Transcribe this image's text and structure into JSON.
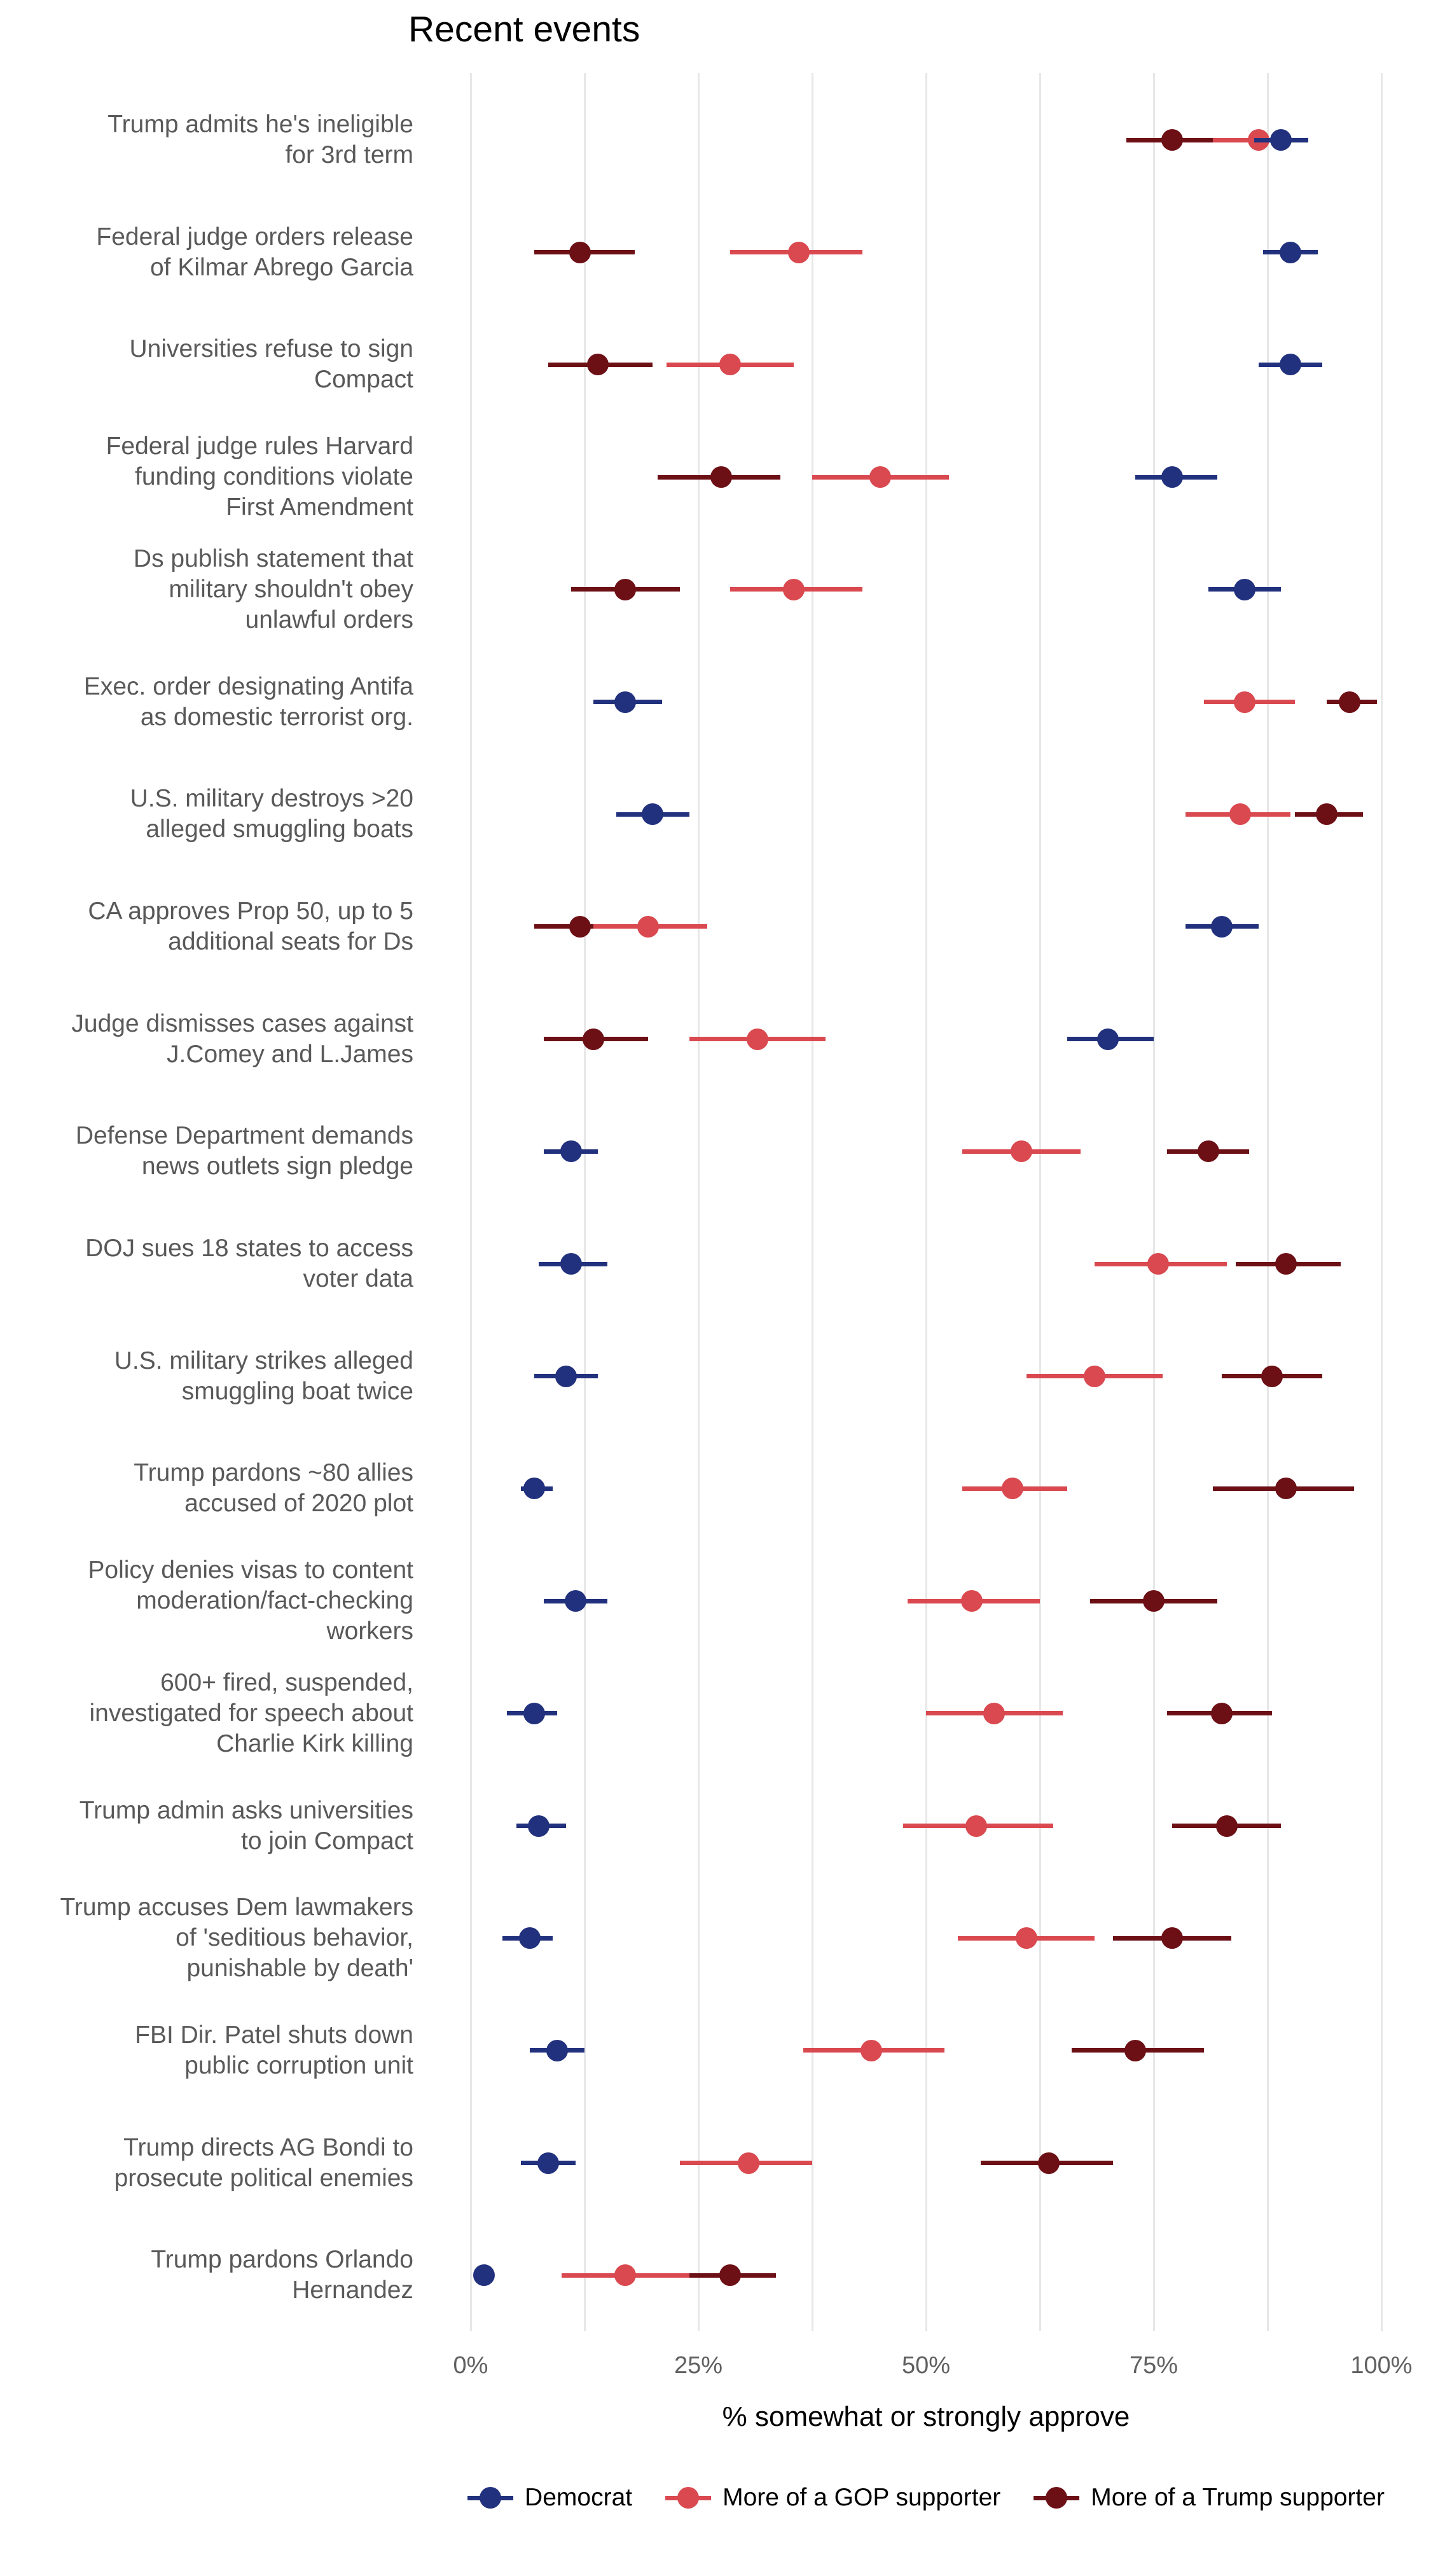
{
  "chart_data": {
    "type": "scatter",
    "mark": "pointrange",
    "title": "Recent events",
    "xlabel": "% somewhat or strongly approve",
    "xlim": [
      0,
      100
    ],
    "x_ticks": [
      {
        "value": 0,
        "label": "0%"
      },
      {
        "value": 25,
        "label": "25%"
      },
      {
        "value": 50,
        "label": "50%"
      },
      {
        "value": 75,
        "label": "75%"
      },
      {
        "value": 100,
        "label": "100%"
      }
    ],
    "gridline_values": [
      0,
      12.5,
      25,
      37.5,
      50,
      62.5,
      75,
      87.5,
      100
    ],
    "grid": "vertical-only",
    "legend_position": "bottom-center",
    "colors": {
      "democrat": "#22317d",
      "gop": "#d9494f",
      "trump": "#6c1016",
      "gridline": "#e7e7e7",
      "row_label": "#595959",
      "tick_label": "#606060"
    },
    "series": [
      {
        "key": "democrat",
        "name": "Democrat"
      },
      {
        "key": "gop",
        "name": "More of a GOP supporter"
      },
      {
        "key": "trump",
        "name": "More of a Trump supporter"
      }
    ],
    "draw_order": [
      "trump",
      "gop",
      "democrat"
    ],
    "rows": [
      {
        "label_lines": [
          "Trump admits he's ineligible",
          "for 3rd term"
        ],
        "democrat": {
          "v": 89,
          "lo": 86,
          "hi": 92
        },
        "gop": {
          "v": 86.5,
          "lo": 81.5,
          "hi": 90
        },
        "trump": {
          "v": 77,
          "lo": 72,
          "hi": 82
        }
      },
      {
        "label_lines": [
          "Federal judge orders release",
          "of Kilmar Abrego Garcia"
        ],
        "democrat": {
          "v": 90,
          "lo": 87,
          "hi": 93
        },
        "gop": {
          "v": 36,
          "lo": 28.5,
          "hi": 43
        },
        "trump": {
          "v": 12,
          "lo": 7,
          "hi": 18
        }
      },
      {
        "label_lines": [
          "Universities refuse to sign",
          "Compact"
        ],
        "democrat": {
          "v": 90,
          "lo": 86.5,
          "hi": 93.5
        },
        "gop": {
          "v": 28.5,
          "lo": 21.5,
          "hi": 35.5
        },
        "trump": {
          "v": 14,
          "lo": 8.5,
          "hi": 20
        }
      },
      {
        "label_lines": [
          "Federal judge rules Harvard",
          "funding conditions violate",
          "First Amendment"
        ],
        "democrat": {
          "v": 77,
          "lo": 73,
          "hi": 82
        },
        "gop": {
          "v": 45,
          "lo": 37.5,
          "hi": 52.5
        },
        "trump": {
          "v": 27.5,
          "lo": 20.5,
          "hi": 34
        }
      },
      {
        "label_lines": [
          "Ds publish statement that",
          "military shouldn't obey",
          "unlawful orders"
        ],
        "democrat": {
          "v": 85,
          "lo": 81,
          "hi": 89
        },
        "gop": {
          "v": 35.5,
          "lo": 28.5,
          "hi": 43
        },
        "trump": {
          "v": 17,
          "lo": 11,
          "hi": 23
        }
      },
      {
        "label_lines": [
          "Exec. order designating Antifa",
          "as domestic terrorist org."
        ],
        "democrat": {
          "v": 17,
          "lo": 13.5,
          "hi": 21
        },
        "gop": {
          "v": 85,
          "lo": 80.5,
          "hi": 90.5
        },
        "trump": {
          "v": 96.5,
          "lo": 94,
          "hi": 99.5
        }
      },
      {
        "label_lines": [
          "U.S. military destroys >20",
          "alleged smuggling boats"
        ],
        "democrat": {
          "v": 20,
          "lo": 16,
          "hi": 24
        },
        "gop": {
          "v": 84.5,
          "lo": 78.5,
          "hi": 90
        },
        "trump": {
          "v": 94,
          "lo": 90.5,
          "hi": 98
        }
      },
      {
        "label_lines": [
          "CA approves Prop 50, up to 5",
          "additional seats for Ds"
        ],
        "democrat": {
          "v": 82.5,
          "lo": 78.5,
          "hi": 86.5
        },
        "gop": {
          "v": 19.5,
          "lo": 13.5,
          "hi": 26
        },
        "trump": {
          "v": 12,
          "lo": 7,
          "hi": 17
        }
      },
      {
        "label_lines": [
          "Judge dismisses cases against",
          "J.Comey and L.James"
        ],
        "democrat": {
          "v": 70,
          "lo": 65.5,
          "hi": 75
        },
        "gop": {
          "v": 31.5,
          "lo": 24,
          "hi": 39
        },
        "trump": {
          "v": 13.5,
          "lo": 8,
          "hi": 19.5
        }
      },
      {
        "label_lines": [
          "Defense Department demands",
          "news outlets sign pledge"
        ],
        "democrat": {
          "v": 11,
          "lo": 8,
          "hi": 14
        },
        "gop": {
          "v": 60.5,
          "lo": 54,
          "hi": 67
        },
        "trump": {
          "v": 81,
          "lo": 76.5,
          "hi": 85.5
        }
      },
      {
        "label_lines": [
          "DOJ sues 18 states to access",
          "voter data"
        ],
        "democrat": {
          "v": 11,
          "lo": 7.5,
          "hi": 15
        },
        "gop": {
          "v": 75.5,
          "lo": 68.5,
          "hi": 83
        },
        "trump": {
          "v": 89.5,
          "lo": 84,
          "hi": 95.5
        }
      },
      {
        "label_lines": [
          "U.S. military strikes alleged",
          "smuggling boat twice"
        ],
        "democrat": {
          "v": 10.5,
          "lo": 7,
          "hi": 14
        },
        "gop": {
          "v": 68.5,
          "lo": 61,
          "hi": 76
        },
        "trump": {
          "v": 88,
          "lo": 82.5,
          "hi": 93.5
        }
      },
      {
        "label_lines": [
          "Trump pardons ~80 allies",
          "accused of 2020 plot"
        ],
        "democrat": {
          "v": 7,
          "lo": 5.5,
          "hi": 9
        },
        "gop": {
          "v": 59.5,
          "lo": 54,
          "hi": 65.5
        },
        "trump": {
          "v": 89.5,
          "lo": 81.5,
          "hi": 97
        }
      },
      {
        "label_lines": [
          "Policy denies visas to content",
          "moderation/fact-checking",
          "workers"
        ],
        "democrat": {
          "v": 11.5,
          "lo": 8,
          "hi": 15
        },
        "gop": {
          "v": 55,
          "lo": 48,
          "hi": 62.5
        },
        "trump": {
          "v": 75,
          "lo": 68,
          "hi": 82
        }
      },
      {
        "label_lines": [
          "600+ fired, suspended,",
          "investigated for speech about",
          "Charlie Kirk killing"
        ],
        "democrat": {
          "v": 7,
          "lo": 4,
          "hi": 9.5
        },
        "gop": {
          "v": 57.5,
          "lo": 50,
          "hi": 65
        },
        "trump": {
          "v": 82.5,
          "lo": 76.5,
          "hi": 88
        }
      },
      {
        "label_lines": [
          "Trump admin asks universities",
          "to join Compact"
        ],
        "democrat": {
          "v": 7.5,
          "lo": 5,
          "hi": 10.5
        },
        "gop": {
          "v": 55.5,
          "lo": 47.5,
          "hi": 64
        },
        "trump": {
          "v": 83,
          "lo": 77,
          "hi": 89
        }
      },
      {
        "label_lines": [
          "Trump accuses Dem lawmakers",
          "of 'seditious behavior,",
          "punishable by death'"
        ],
        "democrat": {
          "v": 6.5,
          "lo": 3.5,
          "hi": 9
        },
        "gop": {
          "v": 61,
          "lo": 53.5,
          "hi": 68.5
        },
        "trump": {
          "v": 77,
          "lo": 70.5,
          "hi": 83.5
        }
      },
      {
        "label_lines": [
          "FBI Dir. Patel shuts down",
          "public corruption unit"
        ],
        "democrat": {
          "v": 9.5,
          "lo": 6.5,
          "hi": 12.5
        },
        "gop": {
          "v": 44,
          "lo": 36.5,
          "hi": 52
        },
        "trump": {
          "v": 73,
          "lo": 66,
          "hi": 80.5
        }
      },
      {
        "label_lines": [
          "Trump directs AG Bondi to",
          "prosecute political enemies"
        ],
        "democrat": {
          "v": 8.5,
          "lo": 5.5,
          "hi": 11.5
        },
        "gop": {
          "v": 30.5,
          "lo": 23,
          "hi": 37.5
        },
        "trump": {
          "v": 63.5,
          "lo": 56,
          "hi": 70.5
        }
      },
      {
        "label_lines": [
          "Trump pardons Orlando",
          "Hernandez"
        ],
        "democrat": {
          "v": 1.5,
          "lo": 1,
          "hi": 2.5
        },
        "gop": {
          "v": 17,
          "lo": 10,
          "hi": 24
        },
        "trump": {
          "v": 28.5,
          "lo": 23,
          "hi": 33.5
        }
      }
    ]
  }
}
